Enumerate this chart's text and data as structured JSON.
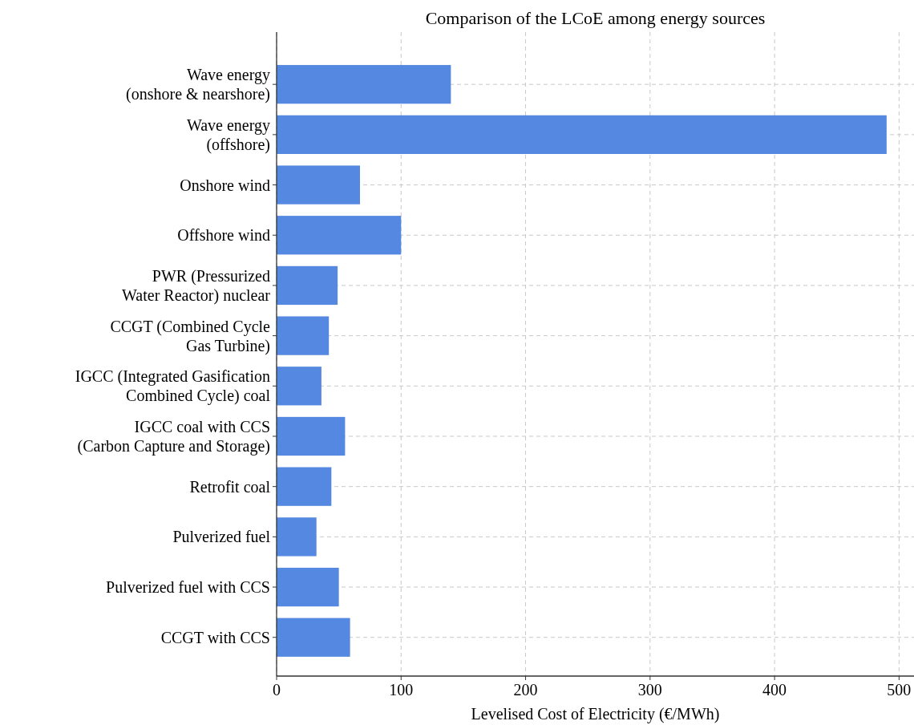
{
  "chart_data": {
    "type": "bar",
    "orientation": "horizontal",
    "title": "Comparison of the LCoE among energy sources",
    "xlabel": "Levelised Cost of Electricity (€/MWh)",
    "categories": [
      "Wave energy\n(onshore & nearshore)",
      "Wave energy\n(offshore)",
      "Onshore wind",
      "Offshore wind",
      "PWR (Pressurized\nWater Reactor) nuclear",
      "CCGT (Combined Cycle\nGas Turbine)",
      "IGCC (Integrated Gasification\nCombined Cycle) coal",
      "IGCC coal with CCS\n(Carbon Capture and Storage)",
      "Retrofit coal",
      "Pulverized fuel",
      "Pulverized fuel with CCS",
      "CCGT with CCS"
    ],
    "values": [
      140,
      490,
      67,
      100,
      49,
      42,
      36,
      55,
      44,
      32,
      50,
      59
    ],
    "color": "#5488e1",
    "xlim": [
      0,
      512
    ],
    "xticks": [
      0,
      100,
      200,
      300,
      400,
      500
    ],
    "grid": true
  }
}
